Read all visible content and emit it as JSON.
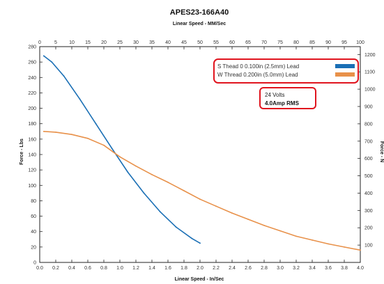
{
  "chart_data": {
    "type": "line",
    "title": "APES23-166A40",
    "subtitle": "Linear Speed - MM/Sec",
    "xlabel": "Linear Speed - In/Sec",
    "ylabel": "Force - Lbs",
    "y2label": "Force - N",
    "xlim": [
      0,
      4.0
    ],
    "ylim": [
      0,
      280
    ],
    "x2lim": [
      0,
      100
    ],
    "y2lim": [
      0,
      1245.5
    ],
    "x_ticks": [
      "0.0",
      "0.2",
      "0.4",
      "0.6",
      "0.8",
      "1.0",
      "1.2",
      "1.4",
      "1.6",
      "1.8",
      "2.0",
      "2.2",
      "2.4",
      "2.6",
      "2.8",
      "3.0",
      "3.2",
      "3.4",
      "3.6",
      "3.8",
      "4.0"
    ],
    "y_ticks": [
      "0",
      "20",
      "40",
      "60",
      "80",
      "100",
      "120",
      "140",
      "160",
      "180",
      "200",
      "220",
      "240",
      "260",
      "280"
    ],
    "x2_ticks": [
      "0",
      "5",
      "10",
      "15",
      "20",
      "25",
      "30",
      "35",
      "40",
      "45",
      "50",
      "55",
      "60",
      "65",
      "70",
      "75",
      "80",
      "85",
      "90",
      "95",
      "100"
    ],
    "y2_ticks": [
      "100",
      "200",
      "300",
      "400",
      "500",
      "600",
      "700",
      "800",
      "900",
      "1000",
      "1100",
      "1200"
    ],
    "grid": false,
    "legend_position": "top-right",
    "series": [
      {
        "name": "S Thead 0 0.100in (2.5mm) Lead",
        "color": "#1a6fb5",
        "x": [
          0.05,
          0.15,
          0.3,
          0.5,
          0.7,
          0.9,
          1.1,
          1.3,
          1.5,
          1.7,
          1.9,
          2.0
        ],
        "y": [
          268,
          260,
          242,
          212,
          180,
          148,
          117,
          90,
          66,
          46,
          31,
          25
        ]
      },
      {
        "name": "W Thread 0.200in (5.0mm) Lead",
        "color": "#e8914a",
        "x": [
          0.05,
          0.2,
          0.4,
          0.6,
          0.8,
          1.0,
          1.2,
          1.4,
          1.6,
          1.8,
          2.0,
          2.2,
          2.4,
          2.6,
          2.8,
          3.0,
          3.2,
          3.4,
          3.6,
          3.8,
          4.0
        ],
        "y": [
          170,
          169,
          166,
          161,
          152,
          137,
          125,
          114,
          104,
          93,
          82,
          73,
          64,
          56,
          48,
          41,
          34,
          29,
          24,
          20,
          16
        ]
      }
    ],
    "annotations": {
      "voltage": "24 Volts",
      "current": "4.0Amp RMS"
    },
    "colors": {
      "frame": "#222222",
      "highlight_box": "#e0141e"
    }
  }
}
